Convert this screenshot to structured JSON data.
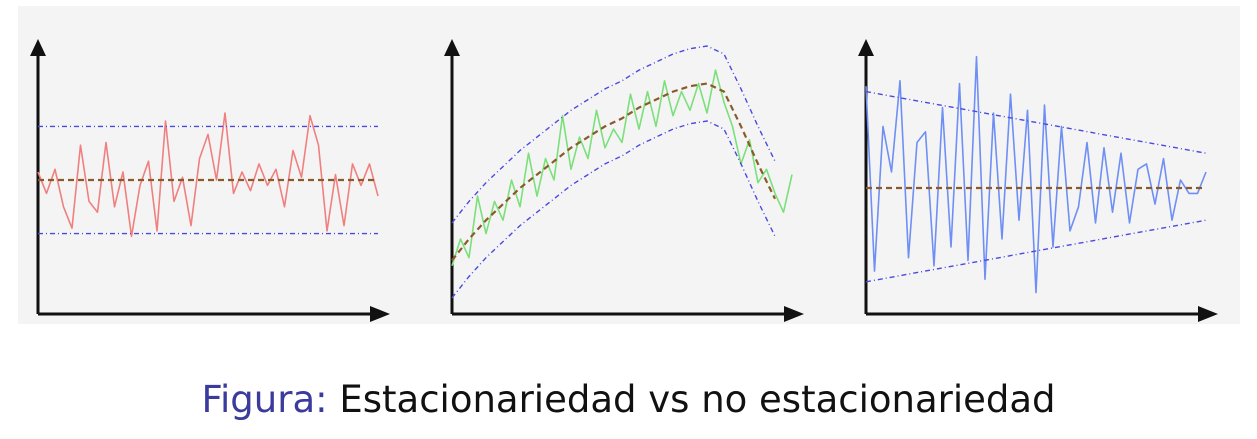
{
  "caption": {
    "prefix": "Figura:",
    "text": "Estacionariedad vs no estacionariedad"
  },
  "colors": {
    "stationary_series": "#f08080",
    "trend_series": "#7be07b",
    "heteroscedastic_series": "#6f8ff5",
    "mean_line": "#8b5a2b",
    "bound_line": "#4a4ae0",
    "axis": "#111111"
  },
  "chart_data": [
    {
      "type": "line",
      "xlim": [
        0,
        40
      ],
      "ylim": [
        0,
        10
      ],
      "grid": false,
      "series": [
        {
          "role": "series",
          "x": [
            0,
            1,
            2,
            3,
            4,
            5,
            6,
            7,
            8,
            9,
            10,
            11,
            12,
            13,
            14,
            15,
            16,
            17,
            18,
            19,
            20,
            21,
            22,
            23,
            24,
            25,
            26,
            27,
            28,
            29,
            30,
            31,
            32,
            33,
            34,
            35,
            36,
            37,
            38,
            39,
            40
          ],
          "y": [
            5.3,
            4.5,
            5.4,
            4.0,
            3.2,
            6.3,
            4.2,
            3.8,
            6.4,
            4.0,
            5.3,
            2.9,
            4.8,
            5.7,
            3.1,
            7.2,
            4.2,
            5.1,
            3.3,
            5.8,
            6.7,
            5.0,
            7.5,
            4.5,
            5.3,
            4.6,
            5.6,
            4.8,
            5.4,
            4.0,
            6.1,
            5.1,
            7.4,
            6.3,
            3.1,
            5.2,
            3.3,
            5.6,
            4.8,
            5.6,
            4.4
          ]
        },
        {
          "role": "mean",
          "x": [
            0,
            40
          ],
          "y": [
            5,
            5
          ]
        },
        {
          "role": "upper_bound",
          "x": [
            0,
            40
          ],
          "y": [
            7,
            7
          ]
        },
        {
          "role": "lower_bound",
          "x": [
            0,
            40
          ],
          "y": [
            3,
            3
          ]
        }
      ]
    },
    {
      "type": "line",
      "xlim": [
        0,
        40
      ],
      "ylim": [
        0,
        10
      ],
      "grid": false,
      "series": [
        {
          "role": "series",
          "x": [
            0,
            1,
            2,
            3,
            4,
            5,
            6,
            7,
            8,
            9,
            10,
            11,
            12,
            13,
            14,
            15,
            16,
            17,
            18,
            19,
            20,
            21,
            22,
            23,
            24,
            25,
            26,
            27,
            28,
            29,
            30,
            31,
            32,
            33,
            34,
            35,
            36,
            37,
            38,
            39,
            40
          ],
          "y": [
            1.8,
            2.8,
            2.1,
            4.4,
            3.0,
            4.2,
            3.5,
            5.0,
            4.0,
            6.0,
            4.4,
            5.8,
            5.0,
            7.4,
            5.4,
            6.6,
            5.8,
            7.6,
            6.2,
            6.9,
            6.4,
            8.2,
            6.9,
            8.3,
            7.0,
            8.7,
            7.4,
            8.3,
            7.6,
            8.6,
            7.5,
            9.1,
            7.9,
            7.0,
            5.6,
            6.5,
            4.9,
            5.4,
            4.5,
            3.8,
            5.2
          ]
        },
        {
          "role": "mean",
          "x": [
            0,
            2,
            4,
            6,
            8,
            10,
            12,
            14,
            16,
            18,
            20,
            22,
            24,
            26,
            28,
            30,
            32,
            34,
            36,
            38
          ],
          "y": [
            2.0,
            2.8,
            3.5,
            4.1,
            4.7,
            5.2,
            5.7,
            6.2,
            6.6,
            7.0,
            7.3,
            7.7,
            8.0,
            8.3,
            8.5,
            8.6,
            8.3,
            7.0,
            5.6,
            4.3
          ]
        },
        {
          "role": "upper_bound",
          "x": [
            0,
            2,
            4,
            6,
            8,
            10,
            12,
            14,
            16,
            18,
            20,
            22,
            24,
            26,
            28,
            30,
            32,
            34,
            36,
            38
          ],
          "y": [
            3.4,
            4.2,
            4.9,
            5.5,
            6.1,
            6.6,
            7.1,
            7.6,
            8.0,
            8.4,
            8.7,
            9.1,
            9.4,
            9.7,
            9.9,
            10.0,
            9.7,
            8.4,
            7.0,
            5.7
          ]
        },
        {
          "role": "lower_bound",
          "x": [
            0,
            2,
            4,
            6,
            8,
            10,
            12,
            14,
            16,
            18,
            20,
            22,
            24,
            26,
            28,
            30,
            32,
            34,
            36,
            38
          ],
          "y": [
            0.6,
            1.4,
            2.1,
            2.7,
            3.3,
            3.8,
            4.3,
            4.8,
            5.2,
            5.6,
            5.9,
            6.3,
            6.6,
            6.9,
            7.1,
            7.2,
            6.9,
            5.6,
            4.2,
            2.9
          ]
        }
      ]
    },
    {
      "type": "line",
      "xlim": [
        0,
        40
      ],
      "ylim": [
        0,
        10
      ],
      "grid": false,
      "series": [
        {
          "role": "series",
          "x": [
            0,
            1,
            2,
            3,
            4,
            5,
            6,
            7,
            8,
            9,
            10,
            11,
            12,
            13,
            14,
            15,
            16,
            17,
            18,
            19,
            20,
            21,
            22,
            23,
            24,
            25,
            26,
            27,
            28,
            29,
            30,
            31,
            32,
            33,
            34,
            35,
            36,
            37,
            38,
            39,
            40
          ],
          "y": [
            8.5,
            1.6,
            7.0,
            5.3,
            8.7,
            2.1,
            6.4,
            6.8,
            1.8,
            7.7,
            2.5,
            8.6,
            2.0,
            9.6,
            1.3,
            7.5,
            2.8,
            8.2,
            3.5,
            7.6,
            0.8,
            7.8,
            2.5,
            7.0,
            3.1,
            4.0,
            6.4,
            3.4,
            6.2,
            3.8,
            6.0,
            3.4,
            5.4,
            5.6,
            4.1,
            5.8,
            3.5,
            5.0,
            4.5,
            4.5,
            5.3
          ]
        },
        {
          "role": "mean",
          "x": [
            0,
            40
          ],
          "y": [
            4.7,
            4.7
          ]
        },
        {
          "role": "upper_bound",
          "x": [
            0,
            40
          ],
          "y": [
            8.3,
            6.0
          ]
        },
        {
          "role": "lower_bound",
          "x": [
            0,
            40
          ],
          "y": [
            1.2,
            3.5
          ]
        }
      ]
    }
  ]
}
